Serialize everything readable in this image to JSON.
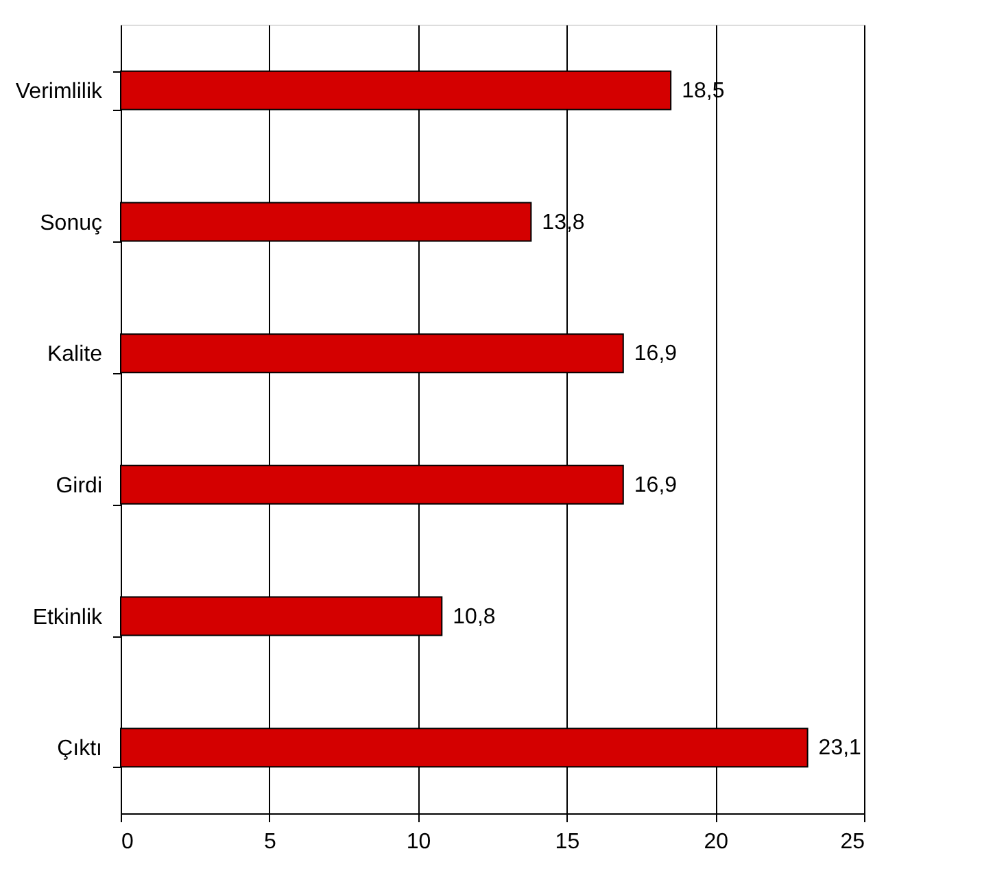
{
  "chart_data": {
    "type": "bar",
    "orientation": "horizontal",
    "categories": [
      "Verimlilik",
      "Sonuç",
      "Kalite",
      "Girdi",
      "Etkinlik",
      "Çıktı"
    ],
    "values": [
      18.5,
      13.8,
      16.9,
      16.9,
      10.8,
      23.1
    ],
    "value_labels": [
      "18,5",
      "13,8",
      "16,9",
      "16,9",
      "10,8",
      "23,1"
    ],
    "color": "#d40000",
    "xlim": [
      0,
      25
    ],
    "xticks": [
      0,
      5,
      10,
      15,
      20,
      25
    ],
    "grid": "x"
  }
}
